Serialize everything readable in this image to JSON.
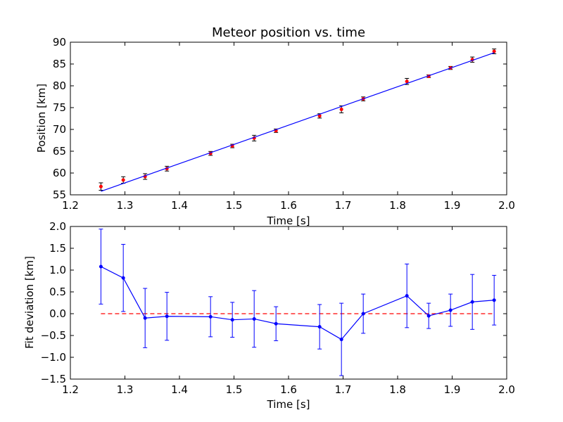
{
  "chart_data": [
    {
      "type": "scatter",
      "title": "Meteor position vs. time",
      "xlabel": "Time [s]",
      "ylabel": "Position [km]",
      "xlim": [
        1.2,
        2.0
      ],
      "ylim": [
        55,
        90
      ],
      "xticks": [
        "1.2",
        "1.3",
        "1.4",
        "1.5",
        "1.6",
        "1.7",
        "1.8",
        "1.9",
        "2.0"
      ],
      "yticks": [
        "55",
        "60",
        "65",
        "70",
        "75",
        "80",
        "85",
        "90"
      ],
      "grid": false,
      "series": [
        {
          "kind": "points-with-errorbars",
          "color": "#ff0000",
          "x": [
            1.256,
            1.297,
            1.337,
            1.377,
            1.457,
            1.497,
            1.537,
            1.577,
            1.657,
            1.697,
            1.737,
            1.817,
            1.857,
            1.897,
            1.937,
            1.977
          ],
          "y": [
            56.9,
            58.4,
            59.2,
            61.0,
            64.5,
            66.2,
            68.0,
            69.7,
            73.1,
            74.6,
            77.0,
            81.0,
            82.2,
            84.1,
            86.0,
            87.9
          ],
          "yerr": [
            0.85,
            0.75,
            0.65,
            0.55,
            0.45,
            0.4,
            0.65,
            0.4,
            0.5,
            0.8,
            0.45,
            0.7,
            0.3,
            0.35,
            0.6,
            0.55
          ]
        },
        {
          "kind": "fit-line",
          "color": "#0000ff",
          "x": [
            1.256,
            1.977
          ],
          "y": [
            55.8,
            87.6
          ]
        }
      ]
    },
    {
      "type": "line",
      "title": "",
      "xlabel": "Time [s]",
      "ylabel": "Fit deviation [km]",
      "xlim": [
        1.2,
        2.0
      ],
      "ylim": [
        -1.5,
        2.0
      ],
      "xticks": [
        "1.2",
        "1.3",
        "1.4",
        "1.5",
        "1.6",
        "1.7",
        "1.8",
        "1.9",
        "2.0"
      ],
      "yticks": [
        "−1.5",
        "−1.0",
        "−0.5",
        "0.0",
        "0.5",
        "1.0",
        "1.5",
        "2.0"
      ],
      "grid": false,
      "reference_line": {
        "y": 0,
        "color": "#ff0000",
        "style": "dashed",
        "x": [
          1.256,
          1.977
        ]
      },
      "series": [
        {
          "kind": "line-with-errorbars",
          "color": "#0000ff",
          "x": [
            1.256,
            1.297,
            1.337,
            1.377,
            1.457,
            1.497,
            1.537,
            1.577,
            1.657,
            1.697,
            1.737,
            1.817,
            1.857,
            1.897,
            1.937,
            1.977
          ],
          "y": [
            1.08,
            0.82,
            -0.1,
            -0.06,
            -0.07,
            -0.14,
            -0.12,
            -0.23,
            -0.3,
            -0.59,
            0.0,
            0.41,
            -0.05,
            0.08,
            0.27,
            0.31
          ],
          "yerr": [
            0.86,
            0.77,
            0.68,
            0.55,
            0.46,
            0.4,
            0.65,
            0.39,
            0.51,
            0.83,
            0.45,
            0.73,
            0.29,
            0.37,
            0.63,
            0.57
          ]
        }
      ]
    }
  ]
}
